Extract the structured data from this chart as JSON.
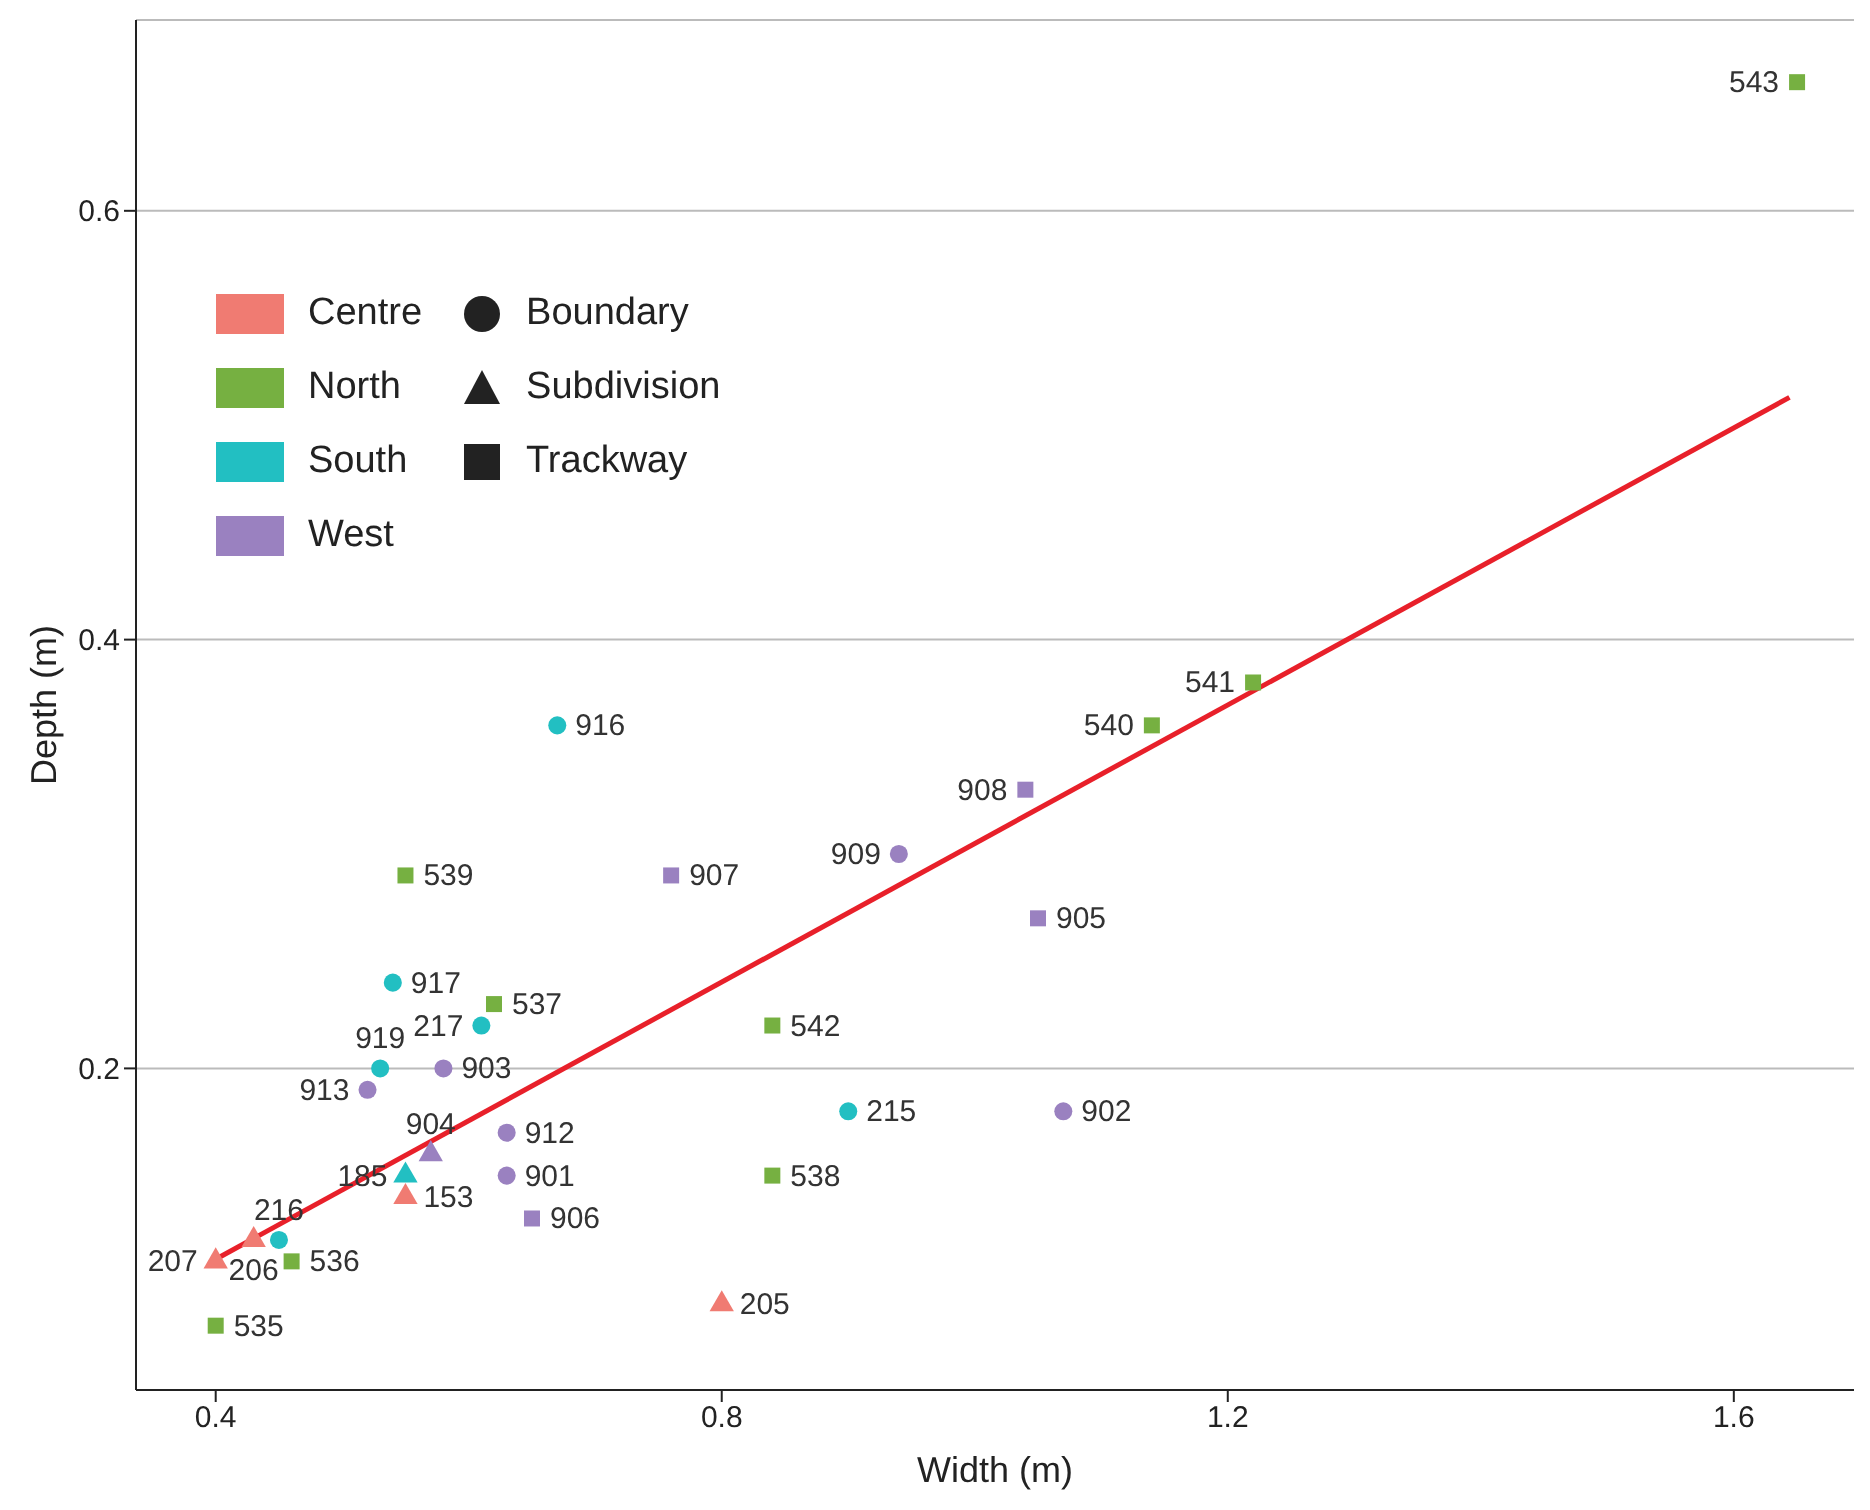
{
  "chart_data": {
    "type": "scatter",
    "xlabel": "Width (m)",
    "ylabel": "Depth (m)",
    "xlim": [
      0.337,
      1.695
    ],
    "xticks": [
      0.4,
      0.8,
      1.2,
      1.6
    ],
    "ylim": [
      0.05,
      0.689
    ],
    "yticks": [
      0.2,
      0.4,
      0.6
    ],
    "grid": "y",
    "legend": "top left",
    "series": [
      {
        "color": "#f07b72",
        "marker": "triangle",
        "x": [
          0.4,
          0.43,
          0.55,
          0.8
        ],
        "values": [
          0.11,
          0.12,
          0.14,
          0.09
        ]
      },
      {
        "color": "#76b041",
        "marker": "square",
        "x": [
          0.4,
          0.46,
          0.55,
          0.62,
          0.84,
          0.84,
          1.14,
          1.22,
          1.65
        ],
        "values": [
          0.08,
          0.11,
          0.29,
          0.23,
          0.22,
          0.15,
          0.36,
          0.38,
          0.66
        ]
      },
      {
        "color": "#22bfc2",
        "marker": "circle",
        "x": [
          0.45,
          0.53,
          0.54,
          0.61,
          0.67,
          0.9
        ],
        "values": [
          0.12,
          0.2,
          0.24,
          0.22,
          0.36,
          0.18
        ]
      },
      {
        "color": "#22bfc2",
        "marker": "triangle",
        "x": [
          0.55
        ],
        "values": [
          0.15
        ]
      },
      {
        "color": "#9a81c0",
        "marker": "circle",
        "x": [
          0.52,
          0.58,
          0.63,
          0.63,
          0.94,
          1.07
        ],
        "values": [
          0.19,
          0.2,
          0.17,
          0.15,
          0.3,
          0.18
        ]
      },
      {
        "color": "#9a81c0",
        "marker": "triangle",
        "x": [
          0.57
        ],
        "values": [
          0.16
        ]
      },
      {
        "color": "#9a81c0",
        "marker": "square",
        "x": [
          0.65,
          0.76,
          1.04,
          1.05
        ],
        "values": [
          0.13,
          0.29,
          0.33,
          0.27
        ]
      },
      {
        "type": "line",
        "color": "#e8202a",
        "marker": "none",
        "x": [
          0.4,
          1.644
        ],
        "values": [
          0.111,
          0.513
        ]
      },
      {
        "name": "Centre",
        "color": "#f07b72"
      },
      {
        "name": "North",
        "color": "#76b041"
      },
      {
        "name": "South",
        "color": "#22bfc2"
      },
      {
        "name": "West",
        "color": "#9a81c0"
      },
      {
        "name": "Boundary",
        "color": "#222222",
        "marker": "circle"
      },
      {
        "name": "Subdivision",
        "color": "#222222",
        "marker": "triangle"
      },
      {
        "name": "Trackway",
        "color": "#222222",
        "marker": "square"
      }
    ],
    "annotations": [
      {
        "text": "207",
        "x": 0.4,
        "y": 0.11
      },
      {
        "text": "206",
        "x": 0.43,
        "y": 0.12
      },
      {
        "text": "153",
        "x": 0.55,
        "y": 0.14
      },
      {
        "text": "205",
        "x": 0.8,
        "y": 0.09
      },
      {
        "text": "535",
        "x": 0.4,
        "y": 0.08
      },
      {
        "text": "536",
        "x": 0.46,
        "y": 0.11
      },
      {
        "text": "539",
        "x": 0.55,
        "y": 0.29
      },
      {
        "text": "537",
        "x": 0.62,
        "y": 0.23
      },
      {
        "text": "542",
        "x": 0.84,
        "y": 0.22
      },
      {
        "text": "538",
        "x": 0.84,
        "y": 0.15
      },
      {
        "text": "540",
        "x": 1.14,
        "y": 0.36
      },
      {
        "text": "541",
        "x": 1.22,
        "y": 0.38
      },
      {
        "text": "543",
        "x": 1.65,
        "y": 0.66
      },
      {
        "text": "216",
        "x": 0.45,
        "y": 0.12
      },
      {
        "text": "919",
        "x": 0.53,
        "y": 0.2
      },
      {
        "text": "917",
        "x": 0.54,
        "y": 0.24
      },
      {
        "text": "217",
        "x": 0.61,
        "y": 0.22
      },
      {
        "text": "916",
        "x": 0.67,
        "y": 0.36
      },
      {
        "text": "215",
        "x": 0.9,
        "y": 0.18
      },
      {
        "text": "185",
        "x": 0.55,
        "y": 0.15
      },
      {
        "text": "913",
        "x": 0.52,
        "y": 0.19
      },
      {
        "text": "903",
        "x": 0.58,
        "y": 0.2
      },
      {
        "text": "912",
        "x": 0.63,
        "y": 0.17
      },
      {
        "text": "901",
        "x": 0.63,
        "y": 0.15
      },
      {
        "text": "909",
        "x": 0.94,
        "y": 0.3
      },
      {
        "text": "902",
        "x": 1.07,
        "y": 0.18
      },
      {
        "text": "904",
        "x": 0.57,
        "y": 0.16
      },
      {
        "text": "906",
        "x": 0.65,
        "y": 0.13
      },
      {
        "text": "907",
        "x": 0.76,
        "y": 0.29
      },
      {
        "text": "908",
        "x": 1.04,
        "y": 0.33
      },
      {
        "text": "905",
        "x": 1.05,
        "y": 0.27
      }
    ]
  }
}
